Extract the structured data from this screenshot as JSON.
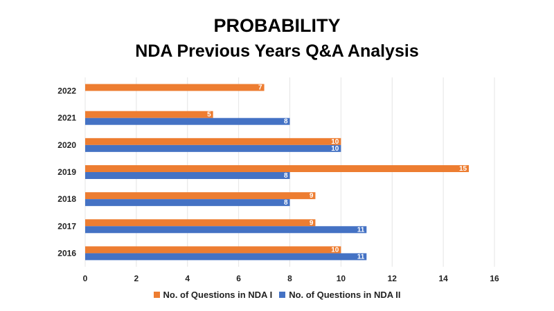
{
  "chart_data": {
    "type": "bar",
    "orientation": "horizontal",
    "title": "PROBABILITY",
    "subtitle": "NDA Previous Years Q&A Analysis",
    "categories": [
      "2016",
      "2017",
      "2018",
      "2019",
      "2020",
      "2021",
      "2022"
    ],
    "series": [
      {
        "name": "No. of Questions in NDA I",
        "color": "#ED7D31",
        "values": [
          10,
          9,
          9,
          15,
          10,
          5,
          7
        ]
      },
      {
        "name": "No. of Questions in NDA II",
        "color": "#4472C4",
        "values": [
          11,
          11,
          8,
          8,
          10,
          8,
          null
        ]
      }
    ],
    "xlim": [
      0,
      16
    ],
    "xticks": [
      0,
      2,
      4,
      6,
      8,
      10,
      12,
      14,
      16
    ],
    "grid": true,
    "legend_position": "bottom",
    "data_labels": true
  }
}
